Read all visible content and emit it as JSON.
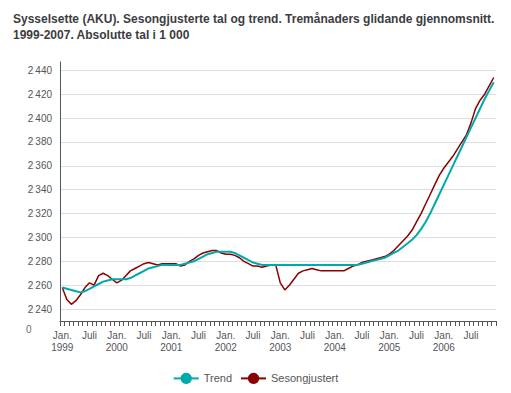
{
  "chart_data": {
    "type": "line",
    "title": "Sysselsette (AKU). Sesongjusterte tal og trend. Tremånaders glidande gjennomsnitt. 1999-2007. Absolutte tal i 1 000",
    "categories": [
      "Jan.\n1999",
      null,
      null,
      null,
      null,
      null,
      "Juli",
      null,
      null,
      null,
      null,
      null,
      "Jan.\n2000",
      null,
      null,
      null,
      null,
      null,
      "Juli",
      null,
      null,
      null,
      null,
      null,
      "Jan.\n2001",
      null,
      null,
      null,
      null,
      null,
      "Juli",
      null,
      null,
      null,
      null,
      null,
      "Jan.\n2002",
      null,
      null,
      null,
      null,
      null,
      "Juli",
      null,
      null,
      null,
      null,
      null,
      "Jan.\n2003",
      null,
      null,
      null,
      null,
      null,
      "Juli",
      null,
      null,
      null,
      null,
      null,
      "Jan.\n2004",
      null,
      null,
      null,
      null,
      null,
      "Juli",
      null,
      null,
      null,
      null,
      null,
      "Jan.\n2005",
      null,
      null,
      null,
      null,
      null,
      "Juli",
      null,
      null,
      null,
      null,
      null,
      "Jan.\n2006",
      null,
      null,
      null,
      null,
      null,
      "Juli",
      null,
      null,
      null,
      null,
      null
    ],
    "series": [
      {
        "name": "Trend",
        "color": "#00AAAA",
        "values": [
          2258,
          2257,
          2256,
          2255,
          2254,
          2255,
          2257,
          2259,
          2261,
          2263,
          2264,
          2265,
          2265,
          2265,
          2265,
          2266,
          2268,
          2270,
          2272,
          2274,
          2275,
          2276,
          2277,
          2277,
          2277,
          2277,
          2277,
          2278,
          2279,
          2280,
          2282,
          2284,
          2286,
          2287,
          2288,
          2288,
          2288,
          2288,
          2287,
          2285,
          2283,
          2281,
          2279,
          2278,
          2277,
          2277,
          2277,
          2277,
          2277,
          2277,
          2277,
          2277,
          2277,
          2277,
          2277,
          2277,
          2277,
          2277,
          2277,
          2277,
          2277,
          2277,
          2277,
          2277,
          2277,
          2277,
          2278,
          2279,
          2280,
          2281,
          2282,
          2283,
          2285,
          2287,
          2289,
          2292,
          2295,
          2298,
          2302,
          2307,
          2313,
          2320,
          2328,
          2336,
          2344,
          2352,
          2360,
          2368,
          2376,
          2384,
          2392,
          2400,
          2408,
          2416,
          2423,
          2430
        ]
      },
      {
        "name": "Sesongjustert",
        "color": "#8B0000",
        "values": [
          2258,
          2248,
          2244,
          2247,
          2252,
          2258,
          2262,
          2260,
          2268,
          2270,
          2268,
          2265,
          2262,
          2264,
          2268,
          2272,
          2274,
          2276,
          2278,
          2279,
          2278,
          2277,
          2278,
          2278,
          2278,
          2278,
          2276,
          2277,
          2280,
          2282,
          2285,
          2287,
          2288,
          2289,
          2289,
          2287,
          2286,
          2286,
          2285,
          2283,
          2280,
          2278,
          2276,
          2276,
          2275,
          2276,
          2277,
          2277,
          2262,
          2256,
          2260,
          2265,
          2270,
          2272,
          2273,
          2274,
          2273,
          2272,
          2272,
          2272,
          2272,
          2272,
          2272,
          2274,
          2276,
          2277,
          2279,
          2280,
          2281,
          2282,
          2283,
          2284,
          2286,
          2289,
          2293,
          2297,
          2301,
          2306,
          2313,
          2320,
          2328,
          2336,
          2344,
          2352,
          2358,
          2363,
          2368,
          2374,
          2380,
          2386,
          2396,
          2408,
          2415,
          2420,
          2427,
          2434
        ]
      }
    ],
    "ylim": [
      2230,
      2447
    ],
    "yticks": [
      {
        "value": 2240,
        "label": "2 240"
      },
      {
        "value": 2260,
        "label": "2 260"
      },
      {
        "value": 2280,
        "label": "2 280"
      },
      {
        "value": 2300,
        "label": "2 300"
      },
      {
        "value": 2320,
        "label": "2 320"
      },
      {
        "value": 2340,
        "label": "2 340"
      },
      {
        "value": 2360,
        "label": "2 360"
      },
      {
        "value": 2380,
        "label": "2 380"
      },
      {
        "value": 2400,
        "label": "2 400"
      },
      {
        "value": 2420,
        "label": "2 420"
      },
      {
        "value": 2440,
        "label": "2 440"
      }
    ],
    "grid": true,
    "legend": "bottom",
    "annotations": [
      "0"
    ]
  }
}
